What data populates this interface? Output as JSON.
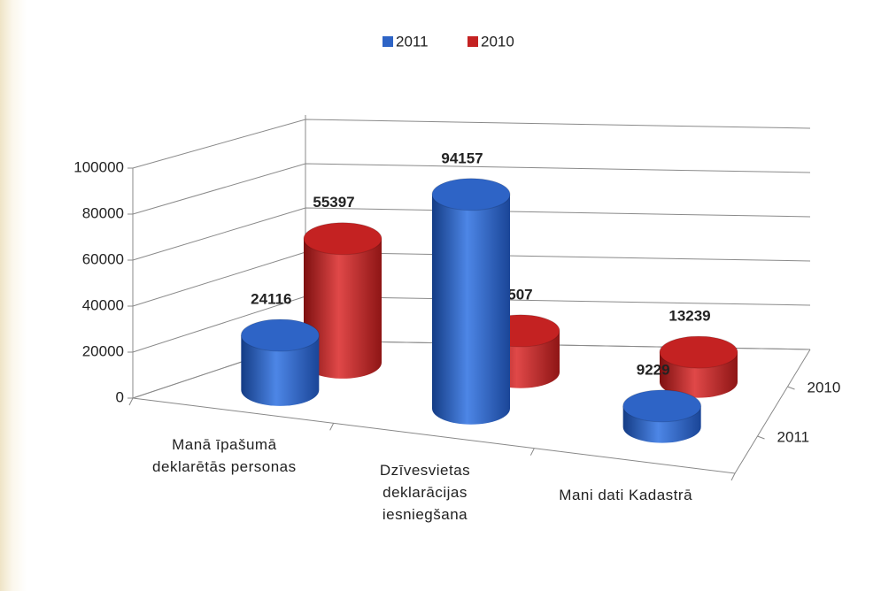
{
  "chart_data": {
    "type": "bar3d",
    "categories": [
      "Manā īpašumā deklarētās personas",
      "Dzīvesvietas deklarācijas iesniegšana",
      "Mani dati Kadastrā"
    ],
    "series": [
      {
        "name": "2011",
        "color": "#2e64c6",
        "values": [
          24116,
          94157,
          9229
        ]
      },
      {
        "name": "2010",
        "color": "#c42222",
        "values": [
          55397,
          18507,
          13239
        ]
      }
    ],
    "ylim": [
      0,
      100000
    ],
    "yticks": [
      0,
      20000,
      40000,
      60000,
      80000,
      100000
    ],
    "grid": true,
    "legend": "top"
  }
}
